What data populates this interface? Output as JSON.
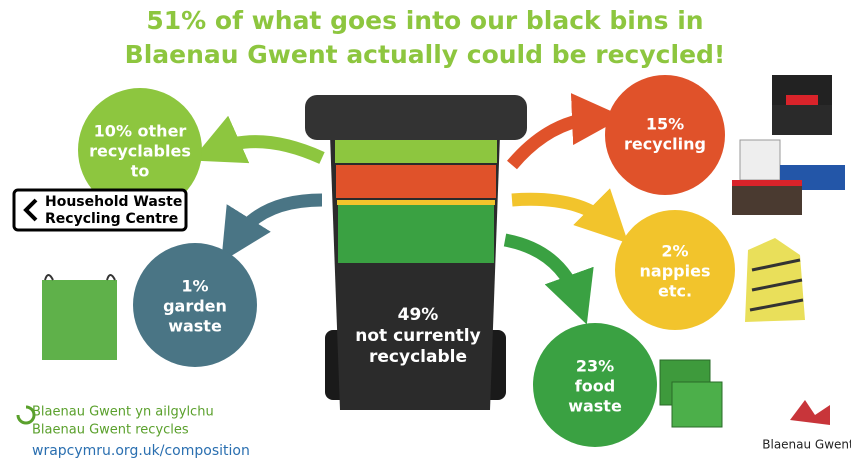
{
  "title": {
    "lines": [
      "51% of what goes into our black bins in",
      "Blaenau Gwent actually could be recycled!"
    ]
  },
  "bin": {
    "lines": [
      "49%",
      "not currently",
      "recyclable"
    ]
  },
  "circles": [
    {
      "lines": [
        "10% other",
        "recyclables",
        "to"
      ]
    },
    {
      "lines": [
        "1%",
        "garden",
        "waste"
      ]
    },
    {
      "lines": [
        "15%",
        "recycling"
      ]
    },
    {
      "lines": [
        "2%",
        "nappies",
        "etc."
      ]
    },
    {
      "lines": [
        "23%",
        "food",
        "waste"
      ]
    }
  ],
  "sign": {
    "lines": [
      "Household Waste",
      "Recycling Centre"
    ]
  },
  "footer": {
    "lines": [
      "Blaenau Gwent yn ailgylchu",
      "Blaenau Gwent recycles"
    ],
    "link": "wrapcymru.org.uk/composition"
  },
  "logo": {
    "text": "Blaenau Gwent"
  }
}
